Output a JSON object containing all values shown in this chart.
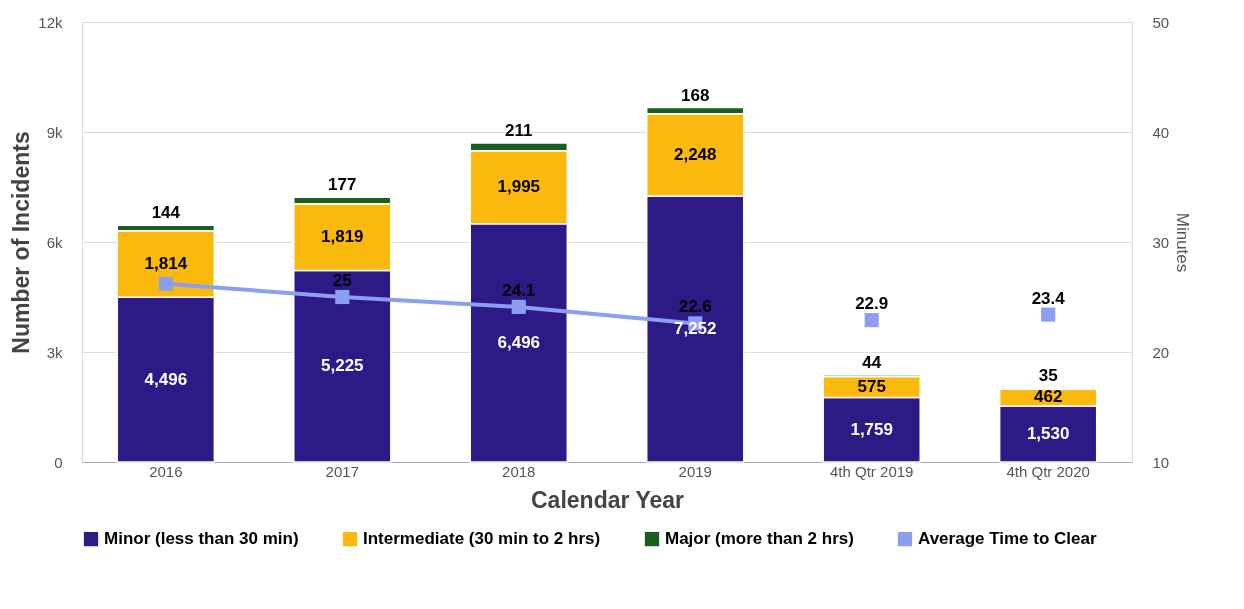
{
  "chart_data": {
    "type": "bar",
    "stacked": true,
    "xlabel": "Calendar Year",
    "ylabel": "Number of Incidents",
    "y2label": "Minutes",
    "categories": [
      "2016",
      "2017",
      "2018",
      "2019",
      "4th Qtr 2019",
      "4th Qtr 2020"
    ],
    "series": [
      {
        "name": "Minor (less than 30 min)",
        "color": "#2e1a87",
        "values": [
          4496,
          5225,
          6496,
          7252,
          1759,
          1530
        ],
        "value_labels": [
          "4,496",
          "5,225",
          "6,496",
          "7,252",
          "1,759",
          "1,530"
        ]
      },
      {
        "name": "Intermediate (30 min to 2 hrs)",
        "color": "#fbb90d",
        "values": [
          1814,
          1819,
          1995,
          2248,
          575,
          462
        ],
        "value_labels": [
          "1,814",
          "1,819",
          "1,995",
          "2,248",
          "575",
          "462"
        ]
      },
      {
        "name": "Major (more than 2 hrs)",
        "color": "#1b5e20",
        "values": [
          144,
          177,
          211,
          168,
          44,
          35
        ],
        "value_labels": [
          "144",
          "177",
          "211",
          "168",
          "44",
          "35"
        ]
      },
      {
        "name": "Average Time to Clear",
        "type": "line",
        "axis": "y2",
        "color": "#8c9ef0",
        "marker": "square",
        "values": [
          26.2,
          25,
          24.1,
          22.6,
          null,
          null
        ],
        "value_labels": [
          null,
          "25",
          "24.1",
          "22.6",
          null,
          null
        ]
      },
      {
        "type": "scatter",
        "axis": "y2",
        "color": "#8c9ef0",
        "marker": "square",
        "values": [
          null,
          null,
          null,
          null,
          22.9,
          23.4
        ],
        "value_labels": [
          null,
          null,
          null,
          null,
          "22.9",
          "23.4"
        ]
      }
    ],
    "ylim": [
      0,
      12000
    ],
    "yticks": [
      0,
      {
        "value": 3000,
        "label": "3k"
      },
      {
        "value": 6000,
        "label": "6k"
      },
      {
        "value": 9000,
        "label": "9k"
      },
      {
        "value": 12000,
        "label": "12k"
      }
    ],
    "y2lim": [
      10,
      50
    ],
    "y2ticks": [
      10,
      20,
      30,
      40,
      50
    ],
    "grid": "y",
    "legend": "bottom"
  }
}
